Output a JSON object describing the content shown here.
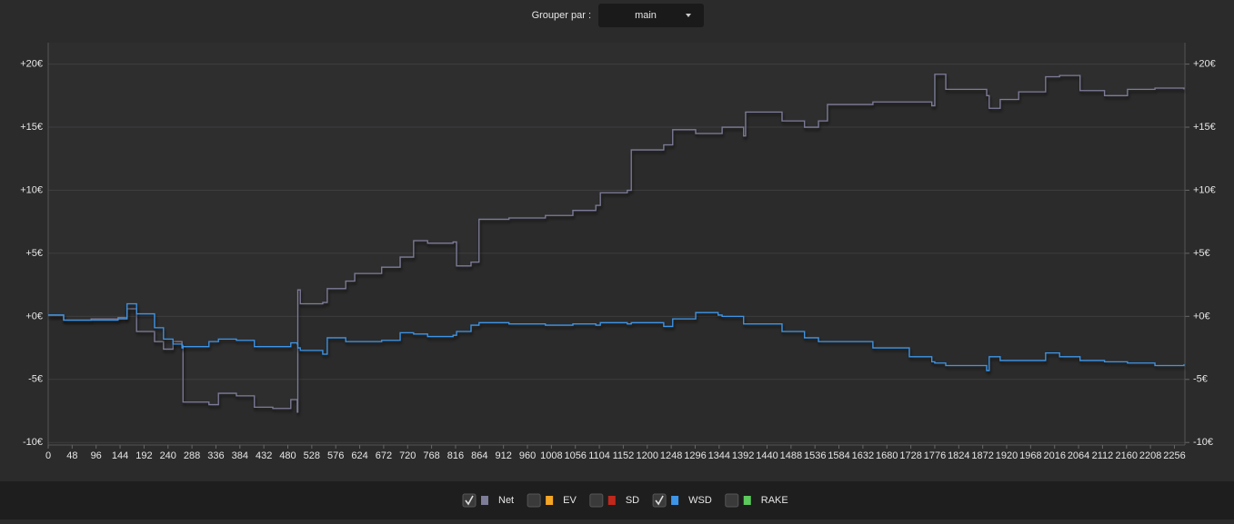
{
  "toolbar": {
    "label": "Grouper par :",
    "select": "main"
  },
  "chart_data": {
    "type": "line",
    "step": true,
    "x": [
      0,
      31,
      86,
      140,
      158,
      177,
      213,
      231,
      250,
      268,
      270,
      322,
      341,
      377,
      413,
      450,
      486,
      499,
      500,
      505,
      550,
      559,
      596,
      614,
      668,
      705,
      732,
      760,
      811,
      818,
      847,
      863,
      923,
      996,
      1051,
      1097,
      1106,
      1160,
      1168,
      1233,
      1251,
      1297,
      1342,
      1350,
      1393,
      1397,
      1470,
      1515,
      1543,
      1561,
      1652,
      1725,
      1770,
      1776,
      1798,
      1880,
      1885,
      1907,
      1944,
      1998,
      2026,
      2067,
      2116,
      2162,
      2217,
      2275
    ],
    "series": [
      {
        "name": "Net",
        "color": "#7d7c99",
        "checked": true,
        "fill": true,
        "values": [
          0.1,
          -0.3,
          -0.2,
          -0.1,
          0.6,
          -1.2,
          -2.0,
          -2.6,
          -2.0,
          -2.3,
          -6.8,
          -7.0,
          -6.1,
          -6.3,
          -7.2,
          -7.3,
          -6.6,
          -7.6,
          2.1,
          1.0,
          1.1,
          2.2,
          2.8,
          3.4,
          3.9,
          4.7,
          6.0,
          5.8,
          5.9,
          4.0,
          4.3,
          7.7,
          7.8,
          8.0,
          8.4,
          8.8,
          9.8,
          10.0,
          13.2,
          13.6,
          14.8,
          14.5,
          14.5,
          15.0,
          14.3,
          16.2,
          15.5,
          15.0,
          15.5,
          16.8,
          17.0,
          17.0,
          16.7,
          19.2,
          18.0,
          17.5,
          16.5,
          17.2,
          17.8,
          19.0,
          19.1,
          17.9,
          17.5,
          18.0,
          18.1,
          18.0
        ]
      },
      {
        "name": "EV",
        "color": "#f5a623",
        "checked": false
      },
      {
        "name": "SD",
        "color": "#c0281b",
        "checked": false
      },
      {
        "name": "WSD",
        "color": "#3d95e8",
        "checked": true,
        "values": [
          0.1,
          -0.3,
          -0.3,
          -0.2,
          1.0,
          0.2,
          -0.9,
          -1.8,
          -2.2,
          -2.5,
          -2.4,
          -2.0,
          -1.8,
          -1.9,
          -2.4,
          -2.4,
          -2.1,
          -2.2,
          -2.5,
          -2.7,
          -3.0,
          -1.7,
          -2.0,
          -2.0,
          -1.9,
          -1.3,
          -1.4,
          -1.6,
          -1.5,
          -1.2,
          -0.7,
          -0.5,
          -0.6,
          -0.7,
          -0.6,
          -0.7,
          -0.5,
          -0.6,
          -0.5,
          -0.8,
          -0.2,
          0.3,
          0.1,
          0.0,
          -0.6,
          -0.6,
          -1.2,
          -1.7,
          -2.0,
          -2.0,
          -2.5,
          -3.2,
          -3.6,
          -3.7,
          -3.9,
          -4.3,
          -3.2,
          -3.5,
          -3.5,
          -2.9,
          -3.2,
          -3.5,
          -3.6,
          -3.7,
          -3.9,
          -3.8
        ]
      },
      {
        "name": "RAKE",
        "color": "#5cc95c",
        "checked": false
      }
    ],
    "xlim": [
      0,
      2277
    ],
    "xticks": [
      0,
      48,
      96,
      144,
      192,
      240,
      288,
      336,
      384,
      432,
      480,
      528,
      576,
      624,
      672,
      720,
      768,
      816,
      864,
      912,
      960,
      1008,
      1056,
      1104,
      1152,
      1200,
      1248,
      1296,
      1344,
      1392,
      1440,
      1488,
      1536,
      1584,
      1632,
      1680,
      1728,
      1776,
      1824,
      1872,
      1920,
      1968,
      2016,
      2064,
      2112,
      2160,
      2208,
      2256
    ],
    "ylim": [
      -10.2,
      21.7
    ],
    "yticks": [
      {
        "value": 20,
        "label": "+20€"
      },
      {
        "value": 15,
        "label": "+15€"
      },
      {
        "value": 10,
        "label": "+10€"
      },
      {
        "value": 5,
        "label": "+5€"
      },
      {
        "value": 0,
        "label": "+0€"
      },
      {
        "value": -5,
        "label": "-5€"
      },
      {
        "value": -10,
        "label": "-10€"
      }
    ],
    "grid": true
  }
}
